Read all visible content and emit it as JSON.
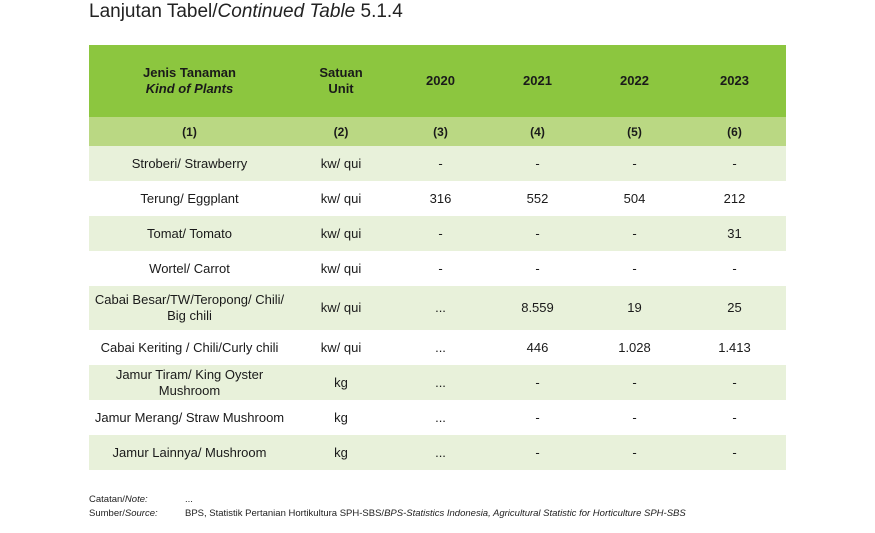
{
  "title": {
    "prefix": "Lanjutan Tabel/",
    "italic": "Continued Table",
    "number": " 5.1.4"
  },
  "header": {
    "col1_line1": "Jenis Tanaman",
    "col1_line2": "Kind of Plants",
    "col2_line1": "Satuan",
    "col2_line2": "Unit",
    "years": [
      "2020",
      "2021",
      "2022",
      "2023"
    ]
  },
  "col_numbers": [
    "(1)",
    "(2)",
    "(3)",
    "(4)",
    "(5)",
    "(6)"
  ],
  "rows": [
    {
      "name": "Stroberi/ Strawberry",
      "name2": "",
      "unit": "kw/ qui",
      "v": [
        "-",
        "-",
        "-",
        "-"
      ]
    },
    {
      "name": "Terung/ Eggplant",
      "name2": "",
      "unit": "kw/ qui",
      "v": [
        "316",
        "552",
        "504",
        "212"
      ]
    },
    {
      "name": "Tomat/ Tomato",
      "name2": "",
      "unit": "kw/ qui",
      "v": [
        "-",
        "-",
        "-",
        "31"
      ]
    },
    {
      "name": "Wortel/ Carrot",
      "name2": "",
      "unit": "kw/ qui",
      "v": [
        "-",
        "-",
        "-",
        "-"
      ]
    },
    {
      "name": "Cabai Besar/TW/Teropong/ Chili/",
      "name2": "Big chili",
      "unit": "kw/ qui",
      "v": [
        "...",
        "8.559",
        "19",
        "25"
      ]
    },
    {
      "name": "Cabai Keriting / Chili/Curly chili",
      "name2": "",
      "unit": "kw/ qui",
      "v": [
        "...",
        "446",
        "1.028",
        "1.413"
      ]
    },
    {
      "name": "Jamur Tiram/ King Oyster Mushroom",
      "name2": "",
      "unit": "kg",
      "v": [
        "...",
        "-",
        "-",
        "-"
      ]
    },
    {
      "name": "Jamur Merang/ Straw Mushroom",
      "name2": "",
      "unit": "kg",
      "v": [
        "...",
        "-",
        "-",
        "-"
      ]
    },
    {
      "name": "Jamur Lainnya/ Mushroom",
      "name2": "",
      "unit": "kg",
      "v": [
        "...",
        "-",
        "-",
        "-"
      ]
    }
  ],
  "footer": {
    "note_label": "Catatan/",
    "note_label_it": "Note:",
    "note_value": "...",
    "source_label": "Sumber/",
    "source_label_it": "Source:",
    "source_value": "BPS, Statistik Pertanian Hortikultura SPH-SBS/",
    "source_value_it": "BPS-Statistics Indonesia, Agricultural Statistic for Horticulture SPH-SBS"
  }
}
